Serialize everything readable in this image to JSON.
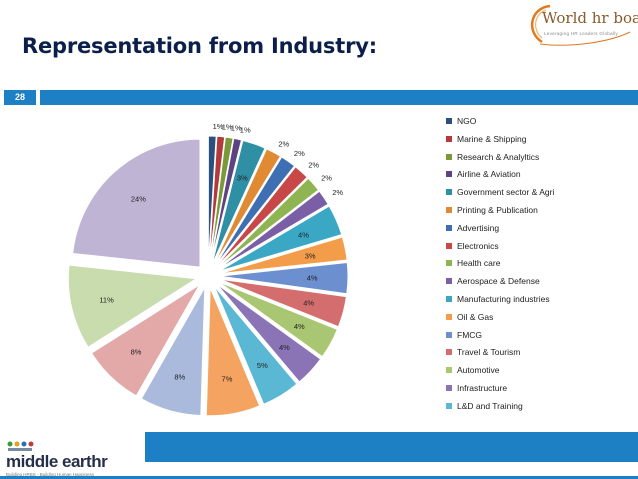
{
  "slide": {
    "title": "Representation from Industry:",
    "number": "28",
    "logo_top_name": "World hr board",
    "logo_top_tagline": "Leveraging HR Leaders Globally",
    "logo_bottom_name": "middle earthr",
    "logo_bottom_tagline": "Building HRBS - Building Human Happiness"
  },
  "colors": {
    "bar": "#1d7fc4",
    "title": "#0b1f4a"
  },
  "chart_data": {
    "type": "pie",
    "exploded": true,
    "legend_position": "right",
    "labels": [
      "NGO",
      "Marine & Shipping",
      "Research & Analyltics",
      "Airline & Aviation",
      "Government sector & Agri",
      "Printing & Publication",
      "Advertising",
      "Electronics",
      "Health care",
      "Aerospace & Defense",
      "Manufacturing industries",
      "Oil & Gas",
      "FMCG",
      "Travel & Tourism",
      "Automotive",
      "Infrastructure",
      "L&D and Training"
    ],
    "slices": [
      {
        "label": "NGO",
        "value": 1,
        "display": "1%",
        "color": "#2b4f7e"
      },
      {
        "label": "Marine & Shipping",
        "value": 1,
        "display": "1%",
        "color": "#b23a3a"
      },
      {
        "label": "Research & Analyltics",
        "value": 1,
        "display": "1%",
        "color": "#7a9a3a"
      },
      {
        "label": "Airline & Aviation",
        "value": 1,
        "display": "1%",
        "color": "#5d4381"
      },
      {
        "label": "Government sector & Agri",
        "value": 3,
        "display": "3%",
        "color": "#2f8fa5"
      },
      {
        "label": "Printing & Publication",
        "value": 2,
        "display": "2%",
        "color": "#e08a34"
      },
      {
        "label": "Advertising",
        "value": 2,
        "display": "2%",
        "color": "#3e6fb3"
      },
      {
        "label": "Electronics",
        "value": 2,
        "display": "2%",
        "color": "#c84848"
      },
      {
        "label": "Health care",
        "value": 2,
        "display": "2%",
        "color": "#8fb553"
      },
      {
        "label": "Aerospace & Defense",
        "value": 2,
        "display": "2%",
        "color": "#7a5ea6"
      },
      {
        "label": "Manufacturing industries",
        "value": 4,
        "display": "4%",
        "color": "#3aa7c4"
      },
      {
        "label": "Oil & Gas",
        "value": 3,
        "display": "3%",
        "color": "#f39c4a"
      },
      {
        "label": "FMCG",
        "value": 4,
        "display": "4%",
        "color": "#6c8fcf"
      },
      {
        "label": "Travel & Tourism",
        "value": 4,
        "display": "4%",
        "color": "#d46d6d"
      },
      {
        "label": "Automotive",
        "value": 4,
        "display": "4%",
        "color": "#a9c772"
      },
      {
        "label": "Infrastructure",
        "value": 4,
        "display": "4%",
        "color": "#8b74b5"
      },
      {
        "label": "L&D and Training",
        "value": 5,
        "display": "5%",
        "color": "#5bb8d4"
      },
      {
        "label": "",
        "value": 7,
        "display": "7%",
        "color": "#f4a460"
      },
      {
        "label": "",
        "value": 8,
        "display": "8%",
        "color": "#a9badc"
      },
      {
        "label": "",
        "value": 8,
        "display": "8%",
        "color": "#e3a8a8"
      },
      {
        "label": "",
        "value": 11,
        "display": "11%",
        "color": "#c8dcae"
      },
      {
        "label": "",
        "value": 24,
        "display": "24%",
        "color": "#c0b4d4"
      }
    ]
  }
}
